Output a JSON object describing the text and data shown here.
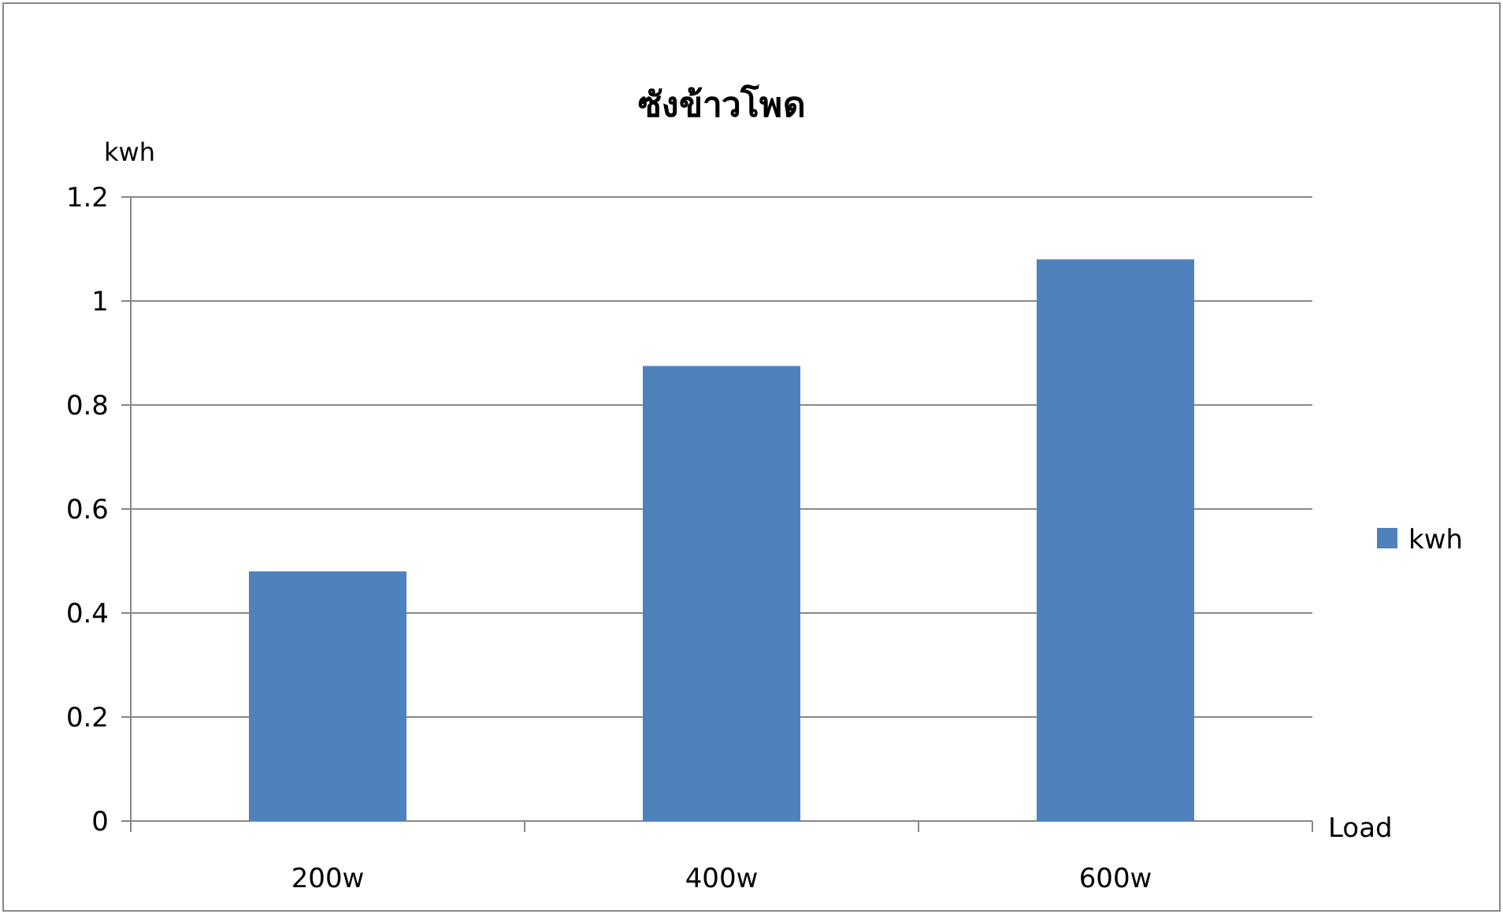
{
  "chart_data": {
    "type": "bar",
    "title": "ซังข้าวโพด",
    "xlabel": "Load",
    "ylabel": "kwh",
    "categories": [
      "200w",
      "400w",
      "600w"
    ],
    "series": [
      {
        "name": "kwh",
        "color": "#4f81bd",
        "values": [
          0.48,
          0.875,
          1.08
        ]
      }
    ],
    "ylim": [
      0,
      1.2
    ],
    "yticks": [
      0,
      0.2,
      0.4,
      0.6,
      0.8,
      1,
      1.2
    ],
    "grid": "y",
    "legend": "right"
  }
}
